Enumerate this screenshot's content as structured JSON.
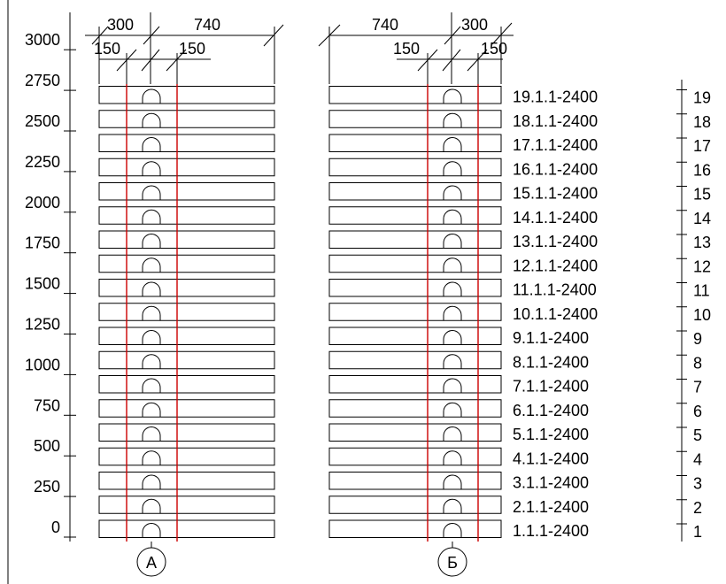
{
  "colors": {
    "line": "#000000",
    "grid": "#cc0000",
    "background": "#ffffff"
  },
  "elevation_scale": {
    "labels": [
      "0",
      "250",
      "500",
      "750",
      "1000",
      "1250",
      "1500",
      "1750",
      "2000",
      "2250",
      "2500",
      "2750",
      "3000"
    ]
  },
  "dimensions": {
    "left_top": [
      "300",
      "740"
    ],
    "left_bottom": [
      "150",
      "150"
    ],
    "right_top": [
      "740",
      "300"
    ],
    "right_bottom": [
      "150",
      "150"
    ]
  },
  "rows": [
    {
      "label": "1.1.1-2400",
      "num": "1"
    },
    {
      "label": "2.1.1-2400",
      "num": "2"
    },
    {
      "label": "3.1.1-2400",
      "num": "3"
    },
    {
      "label": "4.1.1-2400",
      "num": "4"
    },
    {
      "label": "5.1.1-2400",
      "num": "5"
    },
    {
      "label": "6.1.1-2400",
      "num": "6"
    },
    {
      "label": "7.1.1-2400",
      "num": "7"
    },
    {
      "label": "8.1.1-2400",
      "num": "8"
    },
    {
      "label": "9.1.1-2400",
      "num": "9"
    },
    {
      "label": "10.1.1-2400",
      "num": "10"
    },
    {
      "label": "11.1.1-2400",
      "num": "11"
    },
    {
      "label": "12.1.1-2400",
      "num": "12"
    },
    {
      "label": "13.1.1-2400",
      "num": "13"
    },
    {
      "label": "14.1.1-2400",
      "num": "14"
    },
    {
      "label": "15.1.1-2400",
      "num": "15"
    },
    {
      "label": "16.1.1-2400",
      "num": "16"
    },
    {
      "label": "17.1.1-2400",
      "num": "17"
    },
    {
      "label": "18.1.1-2400",
      "num": "18"
    },
    {
      "label": "19.1.1-2400",
      "num": "19"
    }
  ],
  "axes": {
    "left": "А",
    "right": "Б"
  }
}
